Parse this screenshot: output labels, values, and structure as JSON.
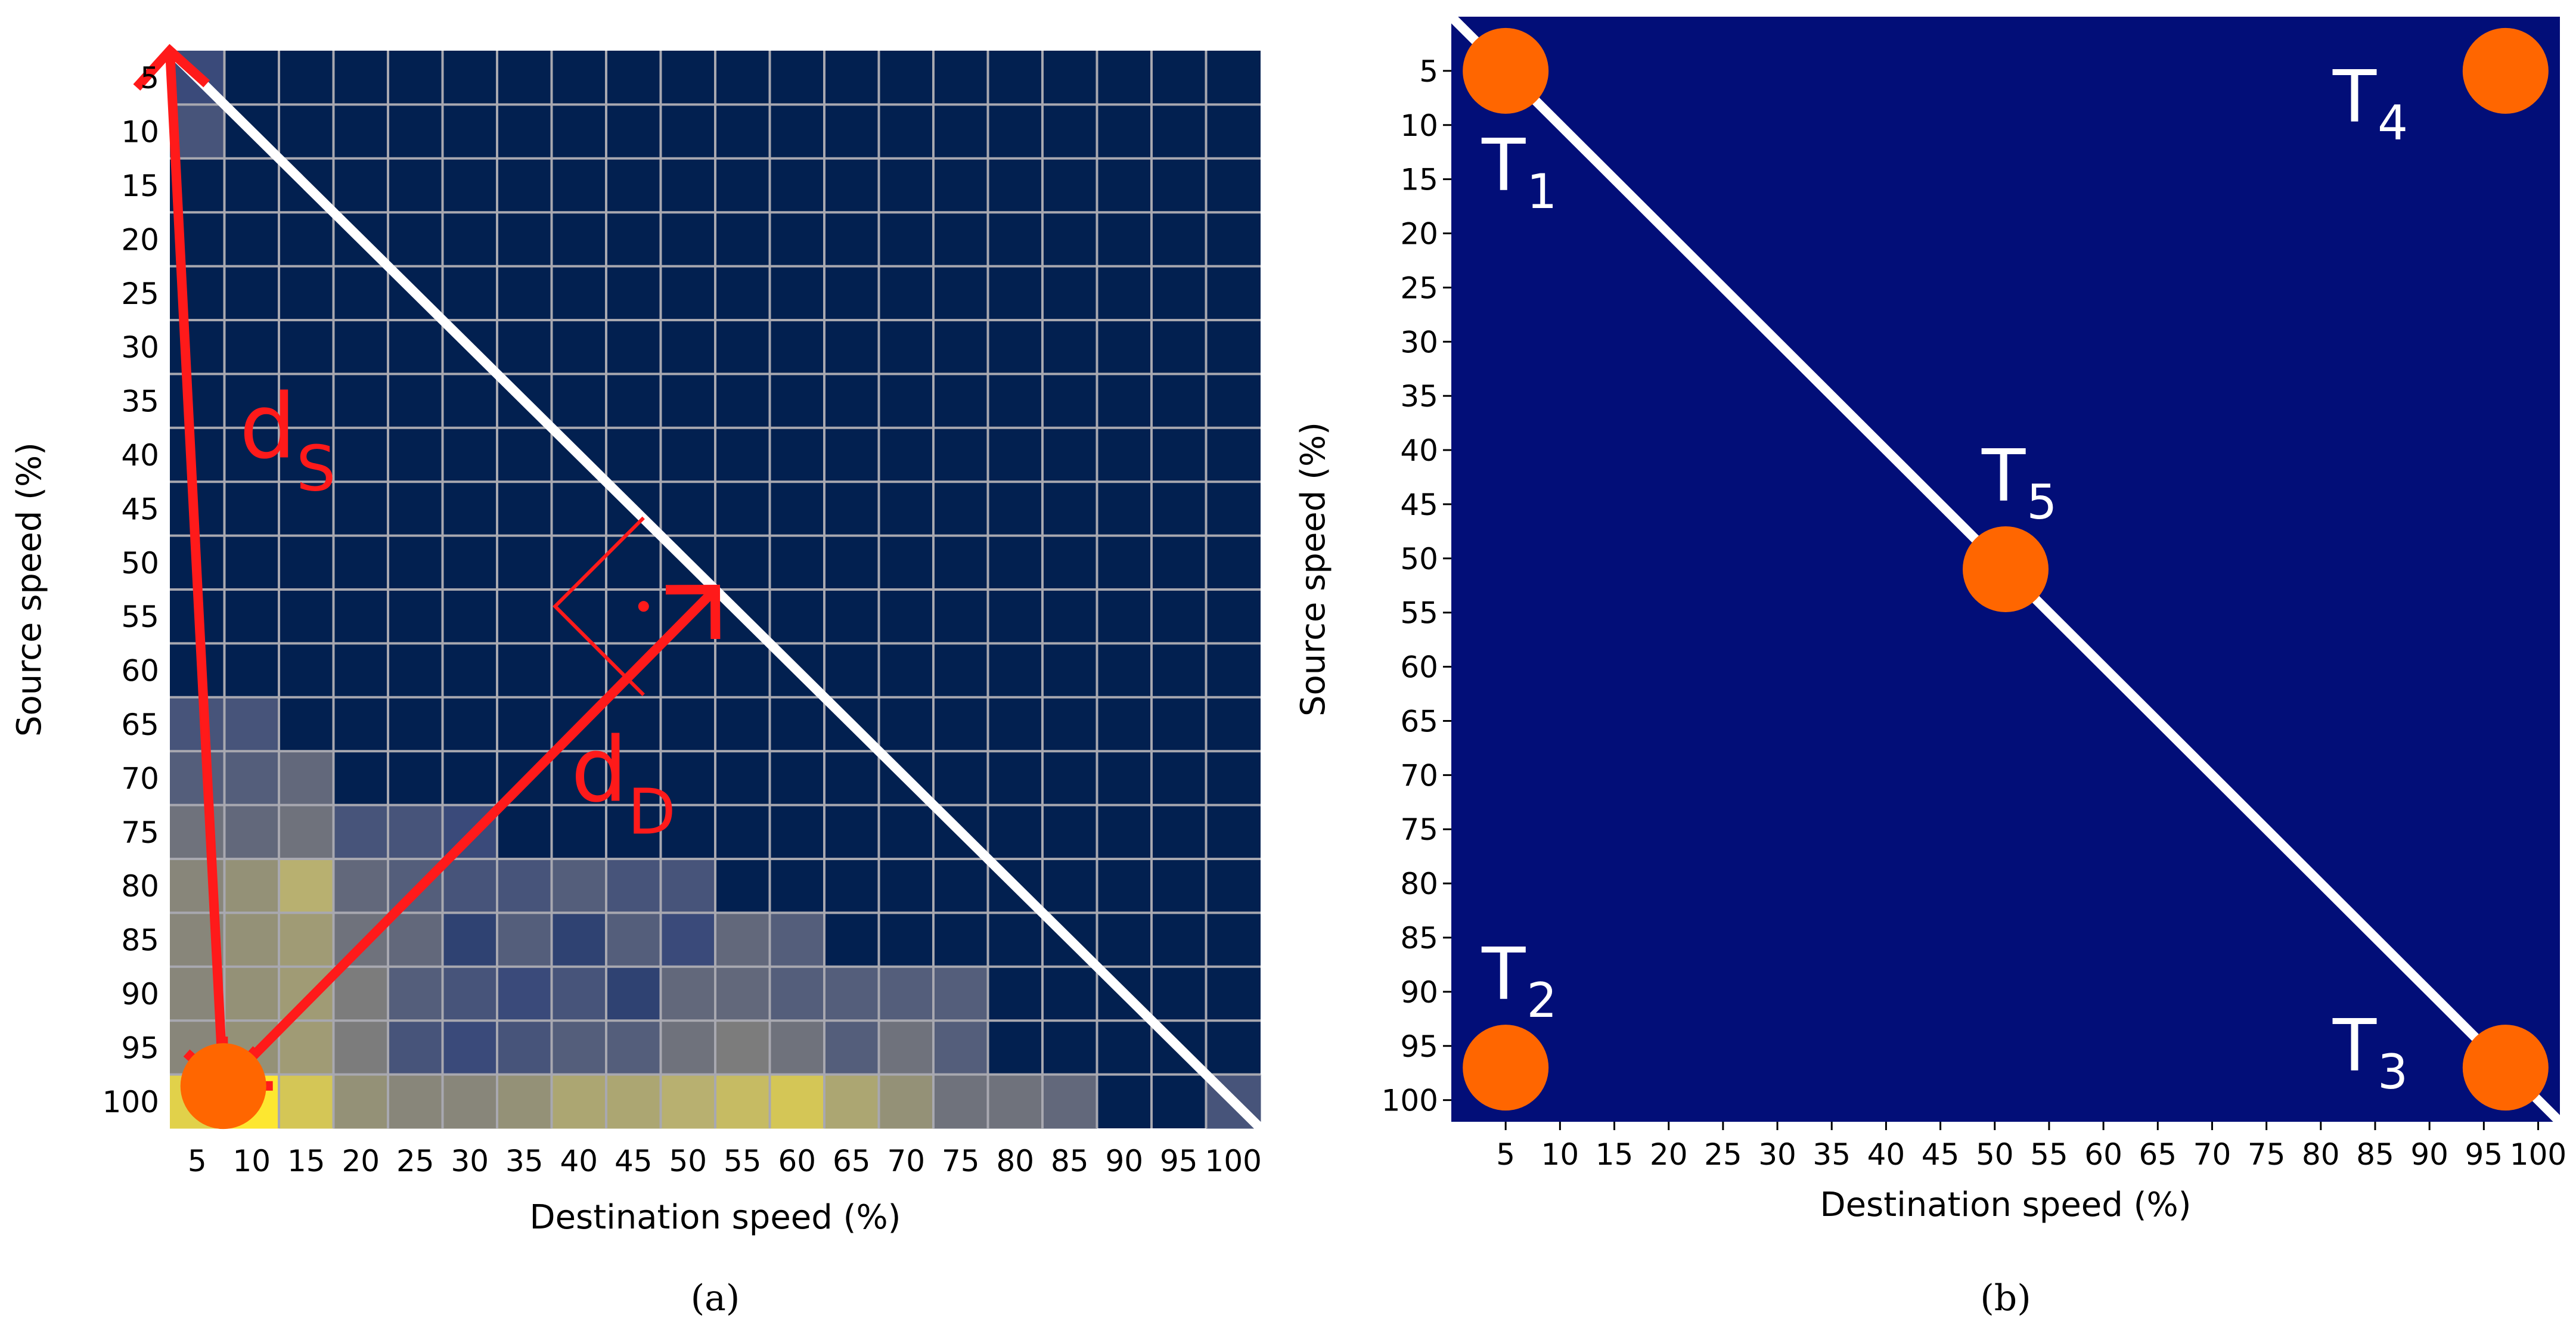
{
  "chart_data": [
    {
      "panel": "a",
      "type": "heatmap",
      "caption": "(a)",
      "xlabel": "Destination speed (%)",
      "ylabel": "Source speed (%)",
      "x_ticks": [
        "5",
        "10",
        "15",
        "20",
        "25",
        "30",
        "35",
        "40",
        "45",
        "50",
        "55",
        "60",
        "65",
        "70",
        "75",
        "80",
        "85",
        "90",
        "95",
        "100"
      ],
      "y_ticks": [
        "5",
        "10",
        "15",
        "20",
        "25",
        "30",
        "35",
        "40",
        "45",
        "50",
        "55",
        "60",
        "65",
        "70",
        "75",
        "80",
        "85",
        "90",
        "95",
        "100"
      ],
      "grid": true,
      "background_color": "#022050",
      "grid_color": "#a8a8b0",
      "colormap": [
        "#022050",
        "#3a4a7a",
        "#7c7c7c",
        "#b8b070",
        "#fde730"
      ],
      "cells": [
        {
          "x": 5,
          "y": 5,
          "v": 0.25
        },
        {
          "x": 5,
          "y": 10,
          "v": 0.3
        },
        {
          "x": 5,
          "y": 65,
          "v": 0.3
        },
        {
          "x": 10,
          "y": 65,
          "v": 0.3
        },
        {
          "x": 5,
          "y": 70,
          "v": 0.35
        },
        {
          "x": 10,
          "y": 70,
          "v": 0.35
        },
        {
          "x": 15,
          "y": 70,
          "v": 0.4
        },
        {
          "x": 5,
          "y": 75,
          "v": 0.45
        },
        {
          "x": 10,
          "y": 75,
          "v": 0.4
        },
        {
          "x": 15,
          "y": 75,
          "v": 0.45
        },
        {
          "x": 20,
          "y": 75,
          "v": 0.3
        },
        {
          "x": 25,
          "y": 75,
          "v": 0.3
        },
        {
          "x": 30,
          "y": 75,
          "v": 0.25
        },
        {
          "x": 5,
          "y": 80,
          "v": 0.55
        },
        {
          "x": 10,
          "y": 80,
          "v": 0.6
        },
        {
          "x": 15,
          "y": 80,
          "v": 0.75
        },
        {
          "x": 20,
          "y": 80,
          "v": 0.4
        },
        {
          "x": 25,
          "y": 80,
          "v": 0.35
        },
        {
          "x": 30,
          "y": 80,
          "v": 0.3
        },
        {
          "x": 35,
          "y": 80,
          "v": 0.3
        },
        {
          "x": 40,
          "y": 80,
          "v": 0.35
        },
        {
          "x": 45,
          "y": 80,
          "v": 0.3
        },
        {
          "x": 50,
          "y": 80,
          "v": 0.3
        },
        {
          "x": 5,
          "y": 85,
          "v": 0.55
        },
        {
          "x": 10,
          "y": 85,
          "v": 0.6
        },
        {
          "x": 15,
          "y": 85,
          "v": 0.65
        },
        {
          "x": 20,
          "y": 85,
          "v": 0.45
        },
        {
          "x": 25,
          "y": 85,
          "v": 0.4
        },
        {
          "x": 30,
          "y": 85,
          "v": 0.2
        },
        {
          "x": 35,
          "y": 85,
          "v": 0.35
        },
        {
          "x": 40,
          "y": 85,
          "v": 0.2
        },
        {
          "x": 45,
          "y": 85,
          "v": 0.35
        },
        {
          "x": 50,
          "y": 85,
          "v": 0.25
        },
        {
          "x": 55,
          "y": 85,
          "v": 0.4
        },
        {
          "x": 60,
          "y": 85,
          "v": 0.35
        },
        {
          "x": 5,
          "y": 90,
          "v": 0.55
        },
        {
          "x": 10,
          "y": 90,
          "v": 0.6
        },
        {
          "x": 15,
          "y": 90,
          "v": 0.65
        },
        {
          "x": 20,
          "y": 90,
          "v": 0.5
        },
        {
          "x": 25,
          "y": 90,
          "v": 0.35
        },
        {
          "x": 30,
          "y": 90,
          "v": 0.3
        },
        {
          "x": 35,
          "y": 90,
          "v": 0.25
        },
        {
          "x": 40,
          "y": 90,
          "v": 0.3
        },
        {
          "x": 45,
          "y": 90,
          "v": 0.2
        },
        {
          "x": 50,
          "y": 90,
          "v": 0.4
        },
        {
          "x": 55,
          "y": 90,
          "v": 0.4
        },
        {
          "x": 60,
          "y": 90,
          "v": 0.35
        },
        {
          "x": 65,
          "y": 90,
          "v": 0.35
        },
        {
          "x": 70,
          "y": 90,
          "v": 0.35
        },
        {
          "x": 75,
          "y": 90,
          "v": 0.35
        },
        {
          "x": 5,
          "y": 95,
          "v": 0.55
        },
        {
          "x": 10,
          "y": 95,
          "v": 0.6
        },
        {
          "x": 15,
          "y": 95,
          "v": 0.65
        },
        {
          "x": 20,
          "y": 95,
          "v": 0.5
        },
        {
          "x": 25,
          "y": 95,
          "v": 0.3
        },
        {
          "x": 30,
          "y": 95,
          "v": 0.25
        },
        {
          "x": 35,
          "y": 95,
          "v": 0.3
        },
        {
          "x": 40,
          "y": 95,
          "v": 0.35
        },
        {
          "x": 45,
          "y": 95,
          "v": 0.35
        },
        {
          "x": 50,
          "y": 95,
          "v": 0.45
        },
        {
          "x": 55,
          "y": 95,
          "v": 0.5
        },
        {
          "x": 60,
          "y": 95,
          "v": 0.45
        },
        {
          "x": 65,
          "y": 95,
          "v": 0.35
        },
        {
          "x": 70,
          "y": 95,
          "v": 0.45
        },
        {
          "x": 75,
          "y": 95,
          "v": 0.35
        },
        {
          "x": 5,
          "y": 100,
          "v": 0.9
        },
        {
          "x": 10,
          "y": 100,
          "v": 1.0
        },
        {
          "x": 15,
          "y": 100,
          "v": 0.85
        },
        {
          "x": 20,
          "y": 100,
          "v": 0.6
        },
        {
          "x": 25,
          "y": 100,
          "v": 0.55
        },
        {
          "x": 30,
          "y": 100,
          "v": 0.55
        },
        {
          "x": 35,
          "y": 100,
          "v": 0.6
        },
        {
          "x": 40,
          "y": 100,
          "v": 0.7
        },
        {
          "x": 45,
          "y": 100,
          "v": 0.7
        },
        {
          "x": 50,
          "y": 100,
          "v": 0.75
        },
        {
          "x": 55,
          "y": 100,
          "v": 0.8
        },
        {
          "x": 60,
          "y": 100,
          "v": 0.85
        },
        {
          "x": 65,
          "y": 100,
          "v": 0.7
        },
        {
          "x": 70,
          "y": 100,
          "v": 0.6
        },
        {
          "x": 75,
          "y": 100,
          "v": 0.45
        },
        {
          "x": 80,
          "y": 100,
          "v": 0.45
        },
        {
          "x": 85,
          "y": 100,
          "v": 0.4
        },
        {
          "x": 100,
          "y": 100,
          "v": 0.3
        }
      ],
      "diagonal": {
        "from": [
          0,
          0
        ],
        "to": [
          102,
          102
        ],
        "color": "#ffffff"
      },
      "annotations": [
        {
          "label": "d",
          "sub": "S",
          "color": "#ff1a1a",
          "arrow_from": [
            0,
            0
          ],
          "arrow_to": [
            5,
            98
          ]
        },
        {
          "label": "d",
          "sub": "D",
          "color": "#ff1a1a",
          "arrow_from": [
            5,
            98
          ],
          "arrow_to": [
            51,
            51
          ]
        }
      ],
      "marker": {
        "x": 5,
        "y": 98,
        "color": "#ff6600"
      },
      "right_angle_marker_color": "#ff1a1a"
    },
    {
      "panel": "b",
      "type": "scatter",
      "caption": "(b)",
      "xlabel": "Destination speed (%)",
      "ylabel": "Source speed (%)",
      "x_ticks": [
        "5",
        "10",
        "15",
        "20",
        "25",
        "30",
        "35",
        "40",
        "45",
        "50",
        "55",
        "60",
        "65",
        "70",
        "75",
        "80",
        "85",
        "90",
        "95",
        "100"
      ],
      "y_ticks": [
        "5",
        "10",
        "15",
        "20",
        "25",
        "30",
        "35",
        "40",
        "45",
        "50",
        "55",
        "60",
        "65",
        "70",
        "75",
        "80",
        "85",
        "90",
        "95",
        "100"
      ],
      "xlim": [
        0,
        102
      ],
      "ylim": [
        0,
        102
      ],
      "background_color": "#020e78",
      "grid": false,
      "diagonal": {
        "from": [
          0,
          0
        ],
        "to": [
          102,
          102
        ],
        "color": "#ffffff"
      },
      "points": [
        {
          "name": "T",
          "sub": "1",
          "x": 5,
          "y": 5,
          "label_pos": "below"
        },
        {
          "name": "T",
          "sub": "2",
          "x": 5,
          "y": 97,
          "label_pos": "above"
        },
        {
          "name": "T",
          "sub": "3",
          "x": 97,
          "y": 97,
          "label_pos": "left"
        },
        {
          "name": "T",
          "sub": "4",
          "x": 97,
          "y": 5,
          "label_pos": "left-below"
        },
        {
          "name": "T",
          "sub": "5",
          "x": 51,
          "y": 51,
          "label_pos": "above"
        }
      ],
      "point_color": "#ff6600"
    }
  ]
}
